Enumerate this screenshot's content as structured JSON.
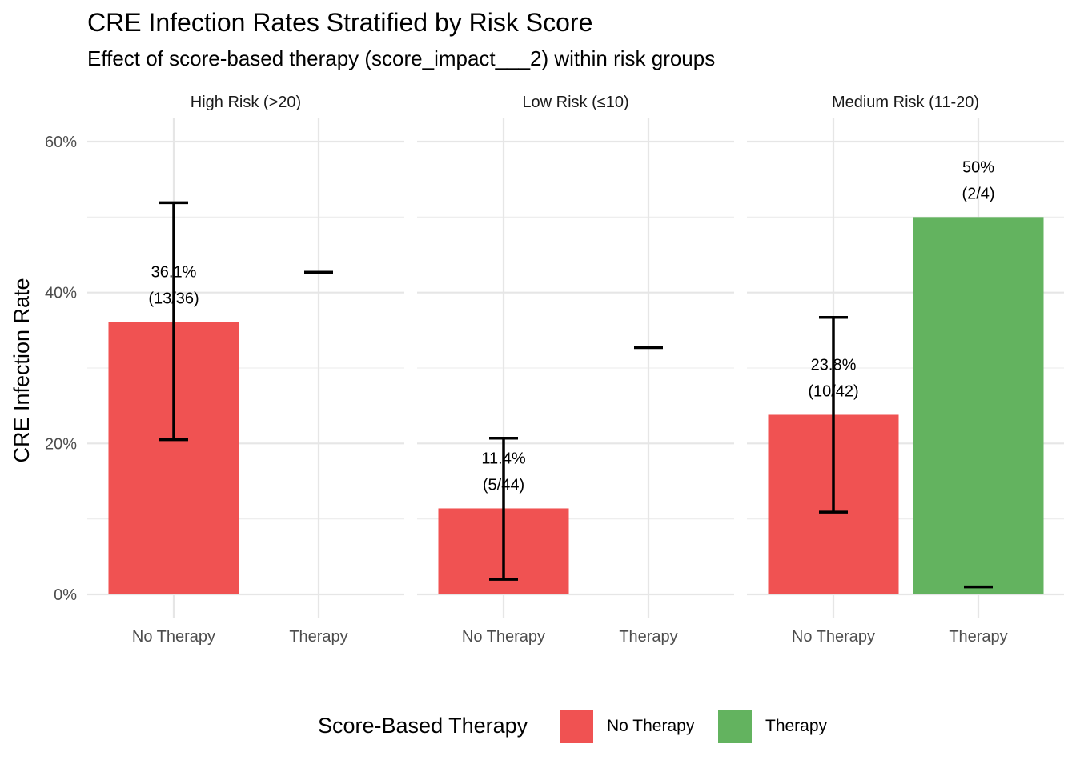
{
  "title": "CRE Infection Rates Stratified by Risk Score",
  "subtitle": "Effect of score-based therapy (score_impact___2) within risk groups",
  "chart_data": {
    "type": "bar",
    "ylabel": "CRE Infection Rate",
    "ylim": [
      0,
      0.62
    ],
    "yticks": [
      0,
      0.2,
      0.4,
      0.6
    ],
    "ytick_labels": [
      "0%",
      "20%",
      "40%",
      "60%"
    ],
    "grid": true,
    "categories": [
      "No Therapy",
      "Therapy"
    ],
    "panels": [
      {
        "label": "High Risk (>20)",
        "bars": [
          {
            "category": "No Therapy",
            "value": 0.361,
            "ci_low": 0.205,
            "ci_high": 0.519,
            "label_pct": "36.1%",
            "label_count": "(13/36)"
          },
          {
            "category": "Therapy",
            "value": 0,
            "ci_low": 0.427,
            "ci_high": 0.427,
            "label_pct": "",
            "label_count": ""
          }
        ]
      },
      {
        "label": "Low Risk (≤10)",
        "bars": [
          {
            "category": "No Therapy",
            "value": 0.114,
            "ci_low": 0.02,
            "ci_high": 0.207,
            "label_pct": "11.4%",
            "label_count": "(5/44)"
          },
          {
            "category": "Therapy",
            "value": 0,
            "ci_low": 0.327,
            "ci_high": 0.327,
            "label_pct": "",
            "label_count": ""
          }
        ]
      },
      {
        "label": "Medium Risk (11-20)",
        "bars": [
          {
            "category": "No Therapy",
            "value": 0.238,
            "ci_low": 0.109,
            "ci_high": 0.367,
            "label_pct": "23.8%",
            "label_count": "(10/42)"
          },
          {
            "category": "Therapy",
            "value": 0.5,
            "ci_low": 0.01,
            "ci_high": 0.01,
            "label_pct": "50%",
            "label_count": "(2/4)"
          }
        ]
      }
    ],
    "legend": {
      "title": "Score-Based Therapy",
      "placement": "bottom",
      "items": [
        {
          "label": "No Therapy",
          "color": "#F05252"
        },
        {
          "label": "Therapy",
          "color": "#63B35F"
        }
      ]
    },
    "colors": {
      "No Therapy": "#F05252",
      "Therapy": "#63B35F"
    }
  }
}
